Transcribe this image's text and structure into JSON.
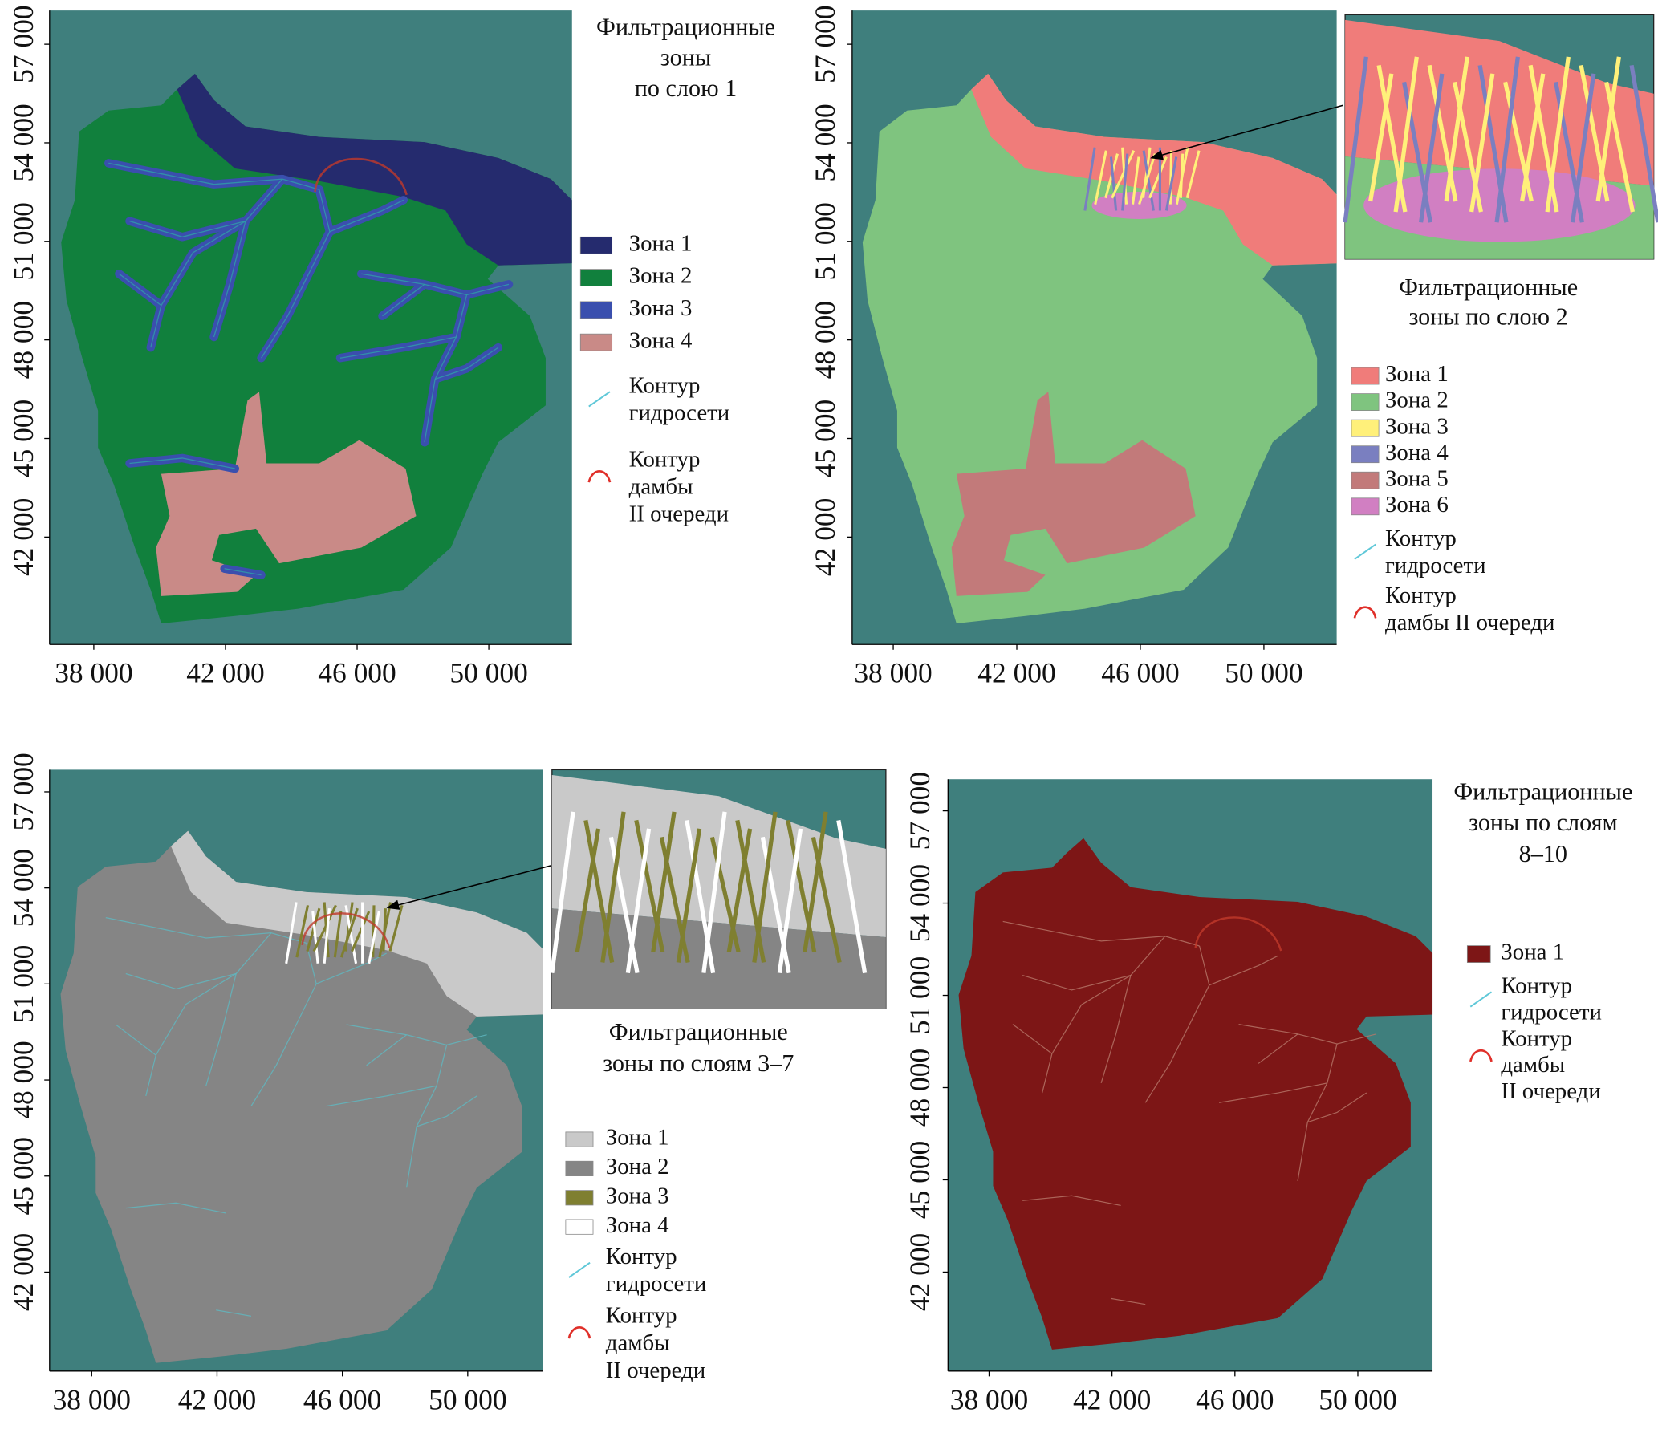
{
  "panels": [
    {
      "title": [
        "Фильтрационные",
        "зоны",
        "по слою 1"
      ],
      "legend": [
        {
          "label": "Зона 1",
          "color": "#252b6e"
        },
        {
          "label": "Зона 2",
          "color": "#11803d"
        },
        {
          "label": "Зона 3",
          "color": "#3a4fae"
        },
        {
          "label": "Зона 4",
          "color": "#c98a87"
        }
      ],
      "hydro_contour": [
        "Контур",
        "гидросети"
      ],
      "dam_contour": [
        "Контур",
        "дамбы",
        "II очереди"
      ],
      "xticks": [
        "38 000",
        "42 000",
        "46 000",
        "50 000"
      ],
      "yticks": [
        "42 000",
        "45 000",
        "48 000",
        "51 000",
        "54 000",
        "57 000"
      ]
    },
    {
      "title": [
        "Фильтрационные",
        "зоны по слою 2"
      ],
      "legend": [
        {
          "label": "Зона 1",
          "color": "#f07c7a"
        },
        {
          "label": "Зона 2",
          "color": "#7fc47f"
        },
        {
          "label": "Зона 3",
          "color": "#fff07a"
        },
        {
          "label": "Зона 4",
          "color": "#7a7fc0"
        },
        {
          "label": "Зона 5",
          "color": "#c27a7a"
        },
        {
          "label": "Зона 6",
          "color": "#d17fc2"
        }
      ],
      "hydro_contour": [
        "Контур",
        "гидросети"
      ],
      "dam_contour": [
        "Контур",
        "дамбы II очереди"
      ],
      "xticks": [
        "38 000",
        "42 000",
        "46 000",
        "50 000"
      ],
      "yticks": [
        "42 000",
        "45 000",
        "48 000",
        "51 000",
        "54 000",
        "57 000"
      ]
    },
    {
      "title": [
        "Фильтрационные",
        "зоны по слоям 3–7"
      ],
      "legend": [
        {
          "label": "Зона 1",
          "color": "#c9c9c9"
        },
        {
          "label": "Зона 2",
          "color": "#858585"
        },
        {
          "label": "Зона 3",
          "color": "#7f7f30"
        },
        {
          "label": "Зона 4",
          "color": "#ffffff"
        }
      ],
      "hydro_contour": [
        "Контур",
        "гидросети"
      ],
      "dam_contour": [
        "Контур",
        "дамбы",
        "II очереди"
      ],
      "xticks": [
        "38 000",
        "42 000",
        "46 000",
        "50 000"
      ],
      "yticks": [
        "42 000",
        "45 000",
        "48 000",
        "51 000",
        "54 000",
        "57 000"
      ]
    },
    {
      "title": [
        "Фильтрационные",
        "зоны по слоям",
        "8–10"
      ],
      "legend": [
        {
          "label": "Зона 1",
          "color": "#7d1616"
        }
      ],
      "hydro_contour": [
        "Контур",
        "гидросети"
      ],
      "dam_contour": [
        "Контур",
        "дамбы",
        "II очереди"
      ],
      "xticks": [
        "38 000",
        "42 000",
        "46 000",
        "50 000"
      ],
      "yticks": [
        "42 000",
        "45 000",
        "48 000",
        "51 000",
        "54 000",
        "57 000"
      ]
    }
  ]
}
